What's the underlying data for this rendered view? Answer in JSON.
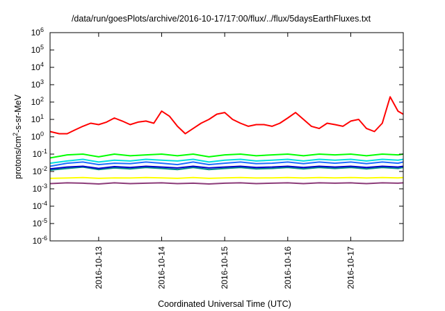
{
  "chart_data": {
    "type": "line",
    "title": "/data/run/goesPlots/archive/2016-10-17/17:00/flux/../flux/5daysEarthFluxes.txt",
    "xlabel": "Coordinated Universal Time (UTC)",
    "ylabel_parts": {
      "pre": "protons/cm",
      "sup": "2",
      "post": "-s-sr-MeV"
    },
    "y_scale": "log",
    "ylim": [
      1e-06,
      1000000
    ],
    "xlim": [
      "2016-10-12 05:30",
      "2016-10-17 20:00"
    ],
    "grid": false,
    "legend": "none",
    "x_ticks": [
      {
        "value": "2016-10-13 00:00",
        "label": "2016-10-13"
      },
      {
        "value": "2016-10-14 00:00",
        "label": "2016-10-14"
      },
      {
        "value": "2016-10-15 00:00",
        "label": "2016-10-15"
      },
      {
        "value": "2016-10-16 00:00",
        "label": "2016-10-16"
      },
      {
        "value": "2016-10-17 00:00",
        "label": "2016-10-17"
      }
    ],
    "y_ticks": [
      {
        "value": 1e-06,
        "base": "10",
        "exp": "-6"
      },
      {
        "value": 1e-05,
        "base": "10",
        "exp": "-5"
      },
      {
        "value": 0.0001,
        "base": "10",
        "exp": "-4"
      },
      {
        "value": 0.001,
        "base": "10",
        "exp": "-3"
      },
      {
        "value": 0.01,
        "base": "10",
        "exp": "-2"
      },
      {
        "value": 0.1,
        "base": "10",
        "exp": "-1"
      },
      {
        "value": 1,
        "base": "10",
        "exp": "0"
      },
      {
        "value": 10,
        "base": "10",
        "exp": "1"
      },
      {
        "value": 100,
        "base": "10",
        "exp": "2"
      },
      {
        "value": 1000,
        "base": "10",
        "exp": "3"
      },
      {
        "value": 10000,
        "base": "10",
        "exp": "4"
      },
      {
        "value": 100000,
        "base": "10",
        "exp": "5"
      },
      {
        "value": 1000000,
        "base": "10",
        "exp": "6"
      }
    ],
    "series": [
      {
        "color": "#ff0000",
        "x": [
          "2016-10-12 05:30",
          "2016-10-12 09:00",
          "2016-10-12 12:00",
          "2016-10-12 15:00",
          "2016-10-12 18:00",
          "2016-10-12 21:00",
          "2016-10-13 00:00",
          "2016-10-13 03:00",
          "2016-10-13 06:00",
          "2016-10-13 09:00",
          "2016-10-13 12:00",
          "2016-10-13 15:00",
          "2016-10-13 18:00",
          "2016-10-13 21:00",
          "2016-10-14 00:00",
          "2016-10-14 03:00",
          "2016-10-14 06:00",
          "2016-10-14 09:00",
          "2016-10-14 12:00",
          "2016-10-14 15:00",
          "2016-10-14 18:00",
          "2016-10-14 21:00",
          "2016-10-15 00:00",
          "2016-10-15 03:00",
          "2016-10-15 06:00",
          "2016-10-15 09:00",
          "2016-10-15 12:00",
          "2016-10-15 15:00",
          "2016-10-15 18:00",
          "2016-10-15 21:00",
          "2016-10-16 00:00",
          "2016-10-16 03:00",
          "2016-10-16 06:00",
          "2016-10-16 09:00",
          "2016-10-16 12:00",
          "2016-10-16 15:00",
          "2016-10-16 18:00",
          "2016-10-16 21:00",
          "2016-10-17 00:00",
          "2016-10-17 03:00",
          "2016-10-17 06:00",
          "2016-10-17 09:00",
          "2016-10-17 12:00",
          "2016-10-17 15:00",
          "2016-10-17 18:00",
          "2016-10-17 20:00"
        ],
        "y": [
          2,
          1.5,
          1.5,
          2.5,
          4,
          6,
          5,
          7,
          12,
          8,
          5,
          7,
          8,
          6,
          30,
          15,
          4,
          1.5,
          3,
          6,
          10,
          20,
          25,
          10,
          6,
          4,
          5,
          5,
          4,
          6,
          12,
          25,
          10,
          4,
          3,
          6,
          5,
          4,
          8,
          10,
          3,
          2,
          6,
          200,
          30,
          20
        ]
      },
      {
        "color": "#00ff00",
        "x": [
          "2016-10-12 05:30",
          "2016-10-12 12:00",
          "2016-10-12 18:00",
          "2016-10-13 00:00",
          "2016-10-13 06:00",
          "2016-10-13 12:00",
          "2016-10-13 18:00",
          "2016-10-14 00:00",
          "2016-10-14 06:00",
          "2016-10-14 12:00",
          "2016-10-14 18:00",
          "2016-10-15 00:00",
          "2016-10-15 06:00",
          "2016-10-15 12:00",
          "2016-10-15 18:00",
          "2016-10-16 00:00",
          "2016-10-16 06:00",
          "2016-10-16 12:00",
          "2016-10-16 18:00",
          "2016-10-17 00:00",
          "2016-10-17 06:00",
          "2016-10-17 12:00",
          "2016-10-17 18:00",
          "2016-10-17 20:00"
        ],
        "y": [
          0.06,
          0.09,
          0.1,
          0.07,
          0.1,
          0.08,
          0.09,
          0.1,
          0.08,
          0.1,
          0.07,
          0.09,
          0.1,
          0.08,
          0.09,
          0.1,
          0.08,
          0.1,
          0.09,
          0.1,
          0.08,
          0.1,
          0.09,
          0.1
        ]
      },
      {
        "color": "#00dddd",
        "x": [
          "2016-10-12 05:30",
          "2016-10-12 12:00",
          "2016-10-12 18:00",
          "2016-10-13 00:00",
          "2016-10-13 06:00",
          "2016-10-13 12:00",
          "2016-10-13 18:00",
          "2016-10-14 00:00",
          "2016-10-14 06:00",
          "2016-10-14 12:00",
          "2016-10-14 18:00",
          "2016-10-15 00:00",
          "2016-10-15 06:00",
          "2016-10-15 12:00",
          "2016-10-15 18:00",
          "2016-10-16 00:00",
          "2016-10-16 06:00",
          "2016-10-16 12:00",
          "2016-10-16 18:00",
          "2016-10-17 00:00",
          "2016-10-17 06:00",
          "2016-10-17 12:00",
          "2016-10-17 18:00",
          "2016-10-17 20:00"
        ],
        "y": [
          0.03,
          0.04,
          0.05,
          0.035,
          0.045,
          0.04,
          0.05,
          0.045,
          0.04,
          0.05,
          0.035,
          0.045,
          0.05,
          0.04,
          0.045,
          0.05,
          0.04,
          0.05,
          0.045,
          0.05,
          0.04,
          0.05,
          0.045,
          0.05
        ]
      },
      {
        "color": "#1e6cff",
        "x": [
          "2016-10-12 05:30",
          "2016-10-12 12:00",
          "2016-10-12 18:00",
          "2016-10-13 00:00",
          "2016-10-13 06:00",
          "2016-10-13 12:00",
          "2016-10-13 18:00",
          "2016-10-14 00:00",
          "2016-10-14 06:00",
          "2016-10-14 12:00",
          "2016-10-14 18:00",
          "2016-10-15 00:00",
          "2016-10-15 06:00",
          "2016-10-15 12:00",
          "2016-10-15 18:00",
          "2016-10-16 00:00",
          "2016-10-16 06:00",
          "2016-10-16 12:00",
          "2016-10-16 18:00",
          "2016-10-17 00:00",
          "2016-10-17 06:00",
          "2016-10-17 12:00",
          "2016-10-17 18:00",
          "2016-10-17 20:00"
        ],
        "y": [
          0.02,
          0.03,
          0.035,
          0.025,
          0.03,
          0.028,
          0.035,
          0.03,
          0.025,
          0.035,
          0.025,
          0.03,
          0.035,
          0.028,
          0.03,
          0.035,
          0.028,
          0.035,
          0.03,
          0.035,
          0.028,
          0.035,
          0.03,
          0.035
        ]
      },
      {
        "color": "#008b8b",
        "x": [
          "2016-10-12 05:30",
          "2016-10-12 12:00",
          "2016-10-12 18:00",
          "2016-10-13 00:00",
          "2016-10-13 06:00",
          "2016-10-13 12:00",
          "2016-10-13 18:00",
          "2016-10-14 00:00",
          "2016-10-14 06:00",
          "2016-10-14 12:00",
          "2016-10-14 18:00",
          "2016-10-15 00:00",
          "2016-10-15 06:00",
          "2016-10-15 12:00",
          "2016-10-15 18:00",
          "2016-10-16 00:00",
          "2016-10-16 06:00",
          "2016-10-16 12:00",
          "2016-10-16 18:00",
          "2016-10-17 00:00",
          "2016-10-17 06:00",
          "2016-10-17 12:00",
          "2016-10-17 18:00",
          "2016-10-17 20:00"
        ],
        "y": [
          0.012,
          0.015,
          0.018,
          0.013,
          0.016,
          0.014,
          0.017,
          0.015,
          0.013,
          0.017,
          0.013,
          0.015,
          0.017,
          0.014,
          0.015,
          0.017,
          0.014,
          0.017,
          0.015,
          0.017,
          0.014,
          0.017,
          0.015,
          0.017
        ]
      },
      {
        "color": "#0000cc",
        "x": [
          "2016-10-12 05:30",
          "2016-10-12 12:00",
          "2016-10-12 18:00",
          "2016-10-13 00:00",
          "2016-10-13 06:00",
          "2016-10-13 12:00",
          "2016-10-13 18:00",
          "2016-10-14 00:00",
          "2016-10-14 06:00",
          "2016-10-14 12:00",
          "2016-10-14 18:00",
          "2016-10-15 00:00",
          "2016-10-15 06:00",
          "2016-10-15 12:00",
          "2016-10-15 18:00",
          "2016-10-16 00:00",
          "2016-10-16 06:00",
          "2016-10-16 12:00",
          "2016-10-16 18:00",
          "2016-10-17 00:00",
          "2016-10-17 06:00",
          "2016-10-17 12:00",
          "2016-10-17 18:00",
          "2016-10-17 20:00"
        ],
        "y": [
          0.014,
          0.018,
          0.02,
          0.015,
          0.019,
          0.017,
          0.02,
          0.018,
          0.016,
          0.02,
          0.016,
          0.018,
          0.02,
          0.017,
          0.018,
          0.02,
          0.017,
          0.02,
          0.018,
          0.02,
          0.017,
          0.02,
          0.018,
          0.02
        ]
      },
      {
        "color": "#ffff00",
        "x": [
          "2016-10-12 05:30",
          "2016-10-12 12:00",
          "2016-10-12 18:00",
          "2016-10-13 00:00",
          "2016-10-13 06:00",
          "2016-10-13 12:00",
          "2016-10-13 18:00",
          "2016-10-14 00:00",
          "2016-10-14 06:00",
          "2016-10-14 12:00",
          "2016-10-14 18:00",
          "2016-10-15 00:00",
          "2016-10-15 06:00",
          "2016-10-15 12:00",
          "2016-10-15 18:00",
          "2016-10-16 00:00",
          "2016-10-16 06:00",
          "2016-10-16 12:00",
          "2016-10-16 18:00",
          "2016-10-17 00:00",
          "2016-10-17 06:00",
          "2016-10-17 12:00",
          "2016-10-17 18:00",
          "2016-10-17 20:00"
        ],
        "y": [
          0.004,
          0.0042,
          0.0045,
          0.004,
          0.0043,
          0.0042,
          0.0045,
          0.0043,
          0.004,
          0.0045,
          0.004,
          0.0043,
          0.0045,
          0.0042,
          0.0043,
          0.0045,
          0.0042,
          0.0045,
          0.0043,
          0.0045,
          0.0042,
          0.0045,
          0.0043,
          0.0045
        ]
      },
      {
        "color": "#8b3a78",
        "x": [
          "2016-10-12 05:30",
          "2016-10-12 12:00",
          "2016-10-12 18:00",
          "2016-10-13 00:00",
          "2016-10-13 06:00",
          "2016-10-13 12:00",
          "2016-10-13 18:00",
          "2016-10-14 00:00",
          "2016-10-14 06:00",
          "2016-10-14 12:00",
          "2016-10-14 18:00",
          "2016-10-15 00:00",
          "2016-10-15 06:00",
          "2016-10-15 12:00",
          "2016-10-15 18:00",
          "2016-10-16 00:00",
          "2016-10-16 06:00",
          "2016-10-16 12:00",
          "2016-10-16 18:00",
          "2016-10-17 00:00",
          "2016-10-17 06:00",
          "2016-10-17 12:00",
          "2016-10-17 18:00",
          "2016-10-17 20:00"
        ],
        "y": [
          0.002,
          0.0022,
          0.0021,
          0.0019,
          0.0022,
          0.002,
          0.0021,
          0.0022,
          0.002,
          0.0021,
          0.0019,
          0.0021,
          0.0022,
          0.002,
          0.0021,
          0.0022,
          0.002,
          0.0022,
          0.0021,
          0.0022,
          0.002,
          0.0022,
          0.0021,
          0.0022
        ]
      }
    ]
  }
}
